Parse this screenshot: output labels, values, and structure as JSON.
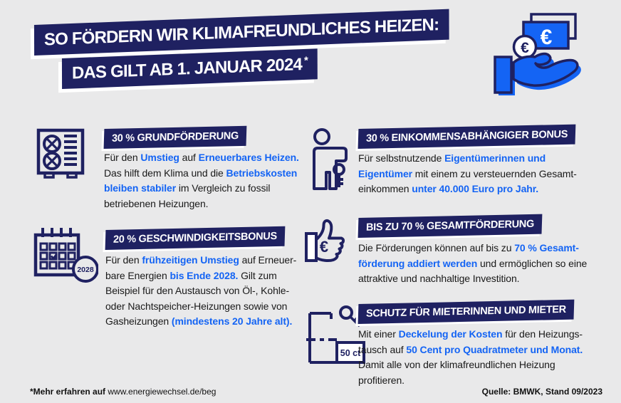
{
  "colors": {
    "background": "#e9e9ea",
    "navy": "#1f2161",
    "blue": "#1464f4",
    "text": "#191919"
  },
  "title": {
    "line1": "SO FÖRDERN WIR KLIMAFREUNDLICHES HEIZEN:",
    "line2": "DAS GILT AB 1. JANUAR 2024",
    "asterisk": "*"
  },
  "icons": {
    "hero": "hand-receiving-money-icon",
    "note_euro": "€",
    "coin_euro": "€",
    "calendar_badge": "2028",
    "thumbs_euro": "€",
    "floorplan_label": "50 ct"
  },
  "sections": [
    {
      "icon": "heat-pump-icon",
      "header": "30 % GRUNDFÖRDERUNG",
      "lines": [
        [
          {
            "t": "Für den "
          },
          {
            "t": "Umstieg",
            "h": true
          },
          {
            "t": " auf "
          },
          {
            "t": "Erneuerbares Heizen.",
            "h": true
          }
        ],
        [
          {
            "t": "Das hilft dem Klima und die "
          },
          {
            "t": "Betriebskosten",
            "h": true
          }
        ],
        [
          {
            "t": "bleiben stabiler",
            "h": true
          },
          {
            "t": " im Vergleich zu fossil"
          }
        ],
        [
          {
            "t": "betriebenen Heizungen."
          }
        ]
      ]
    },
    {
      "icon": "person-with-key-icon",
      "header": "30 % EINKOMMENSABHÄNGIGER BONUS",
      "lines": [
        [
          {
            "t": "Für selbstnutzende "
          },
          {
            "t": "Eigentümerinnen und",
            "h": true
          }
        ],
        [
          {
            "t": "Eigentümer",
            "h": true
          },
          {
            "t": " mit einem zu versteuernden Gesamt-"
          }
        ],
        [
          {
            "t": "einkommen "
          },
          {
            "t": "unter 40.000 Euro pro Jahr.",
            "h": true
          }
        ]
      ]
    },
    {
      "icon": "calendar-2028-icon",
      "header": "20 % GESCHWINDIGKEITSBONUS",
      "lines": [
        [
          {
            "t": "Für den "
          },
          {
            "t": "frühzeitigen Umstieg",
            "h": true
          },
          {
            "t": " auf Erneuer-"
          }
        ],
        [
          {
            "t": "bare Energien "
          },
          {
            "t": "bis Ende 2028.",
            "h": true
          },
          {
            "t": " Gilt zum"
          }
        ],
        [
          {
            "t": "Beispiel für den Austausch von Öl-, Kohle-"
          }
        ],
        [
          {
            "t": "oder Nachtspeicher-Heizungen sowie von"
          }
        ],
        [
          {
            "t": "Gasheizungen "
          },
          {
            "t": "(mindestens 20 Jahre alt).",
            "h": true
          }
        ]
      ]
    },
    {
      "icon": "thumbs-up-euro-icon",
      "header": "BIS ZU 70 % GESAMTFÖRDERUNG",
      "lines": [
        [
          {
            "t": "Die Förderungen können auf bis zu "
          },
          {
            "t": "70 % Gesamt-",
            "h": true
          }
        ],
        [
          {
            "t": "förderung addiert werden",
            "h": true
          },
          {
            "t": " und ermöglichen so eine"
          }
        ],
        [
          {
            "t": "attraktive und nachhaltige Investition."
          }
        ]
      ]
    },
    {
      "icon": "floor-plan-key-icon",
      "header": "SCHUTZ FÜR MIETERINNEN UND MIETER",
      "lines": [
        [
          {
            "t": "Mit einer "
          },
          {
            "t": "Deckelung der Kosten",
            "h": true
          },
          {
            "t": " für den Heizungs-"
          }
        ],
        [
          {
            "t": "tausch auf "
          },
          {
            "t": "50 Cent pro Quadratmeter und Monat.",
            "h": true
          }
        ],
        [
          {
            "t": "Damit alle von der klimafreundlichen Heizung"
          }
        ],
        [
          {
            "t": "profitieren."
          }
        ]
      ]
    }
  ],
  "footer": {
    "note_bold": "*Mehr erfahren auf",
    "note_url": " www.energiewechsel.de/beg",
    "source": "Quelle: BMWK, Stand 09/2023"
  }
}
